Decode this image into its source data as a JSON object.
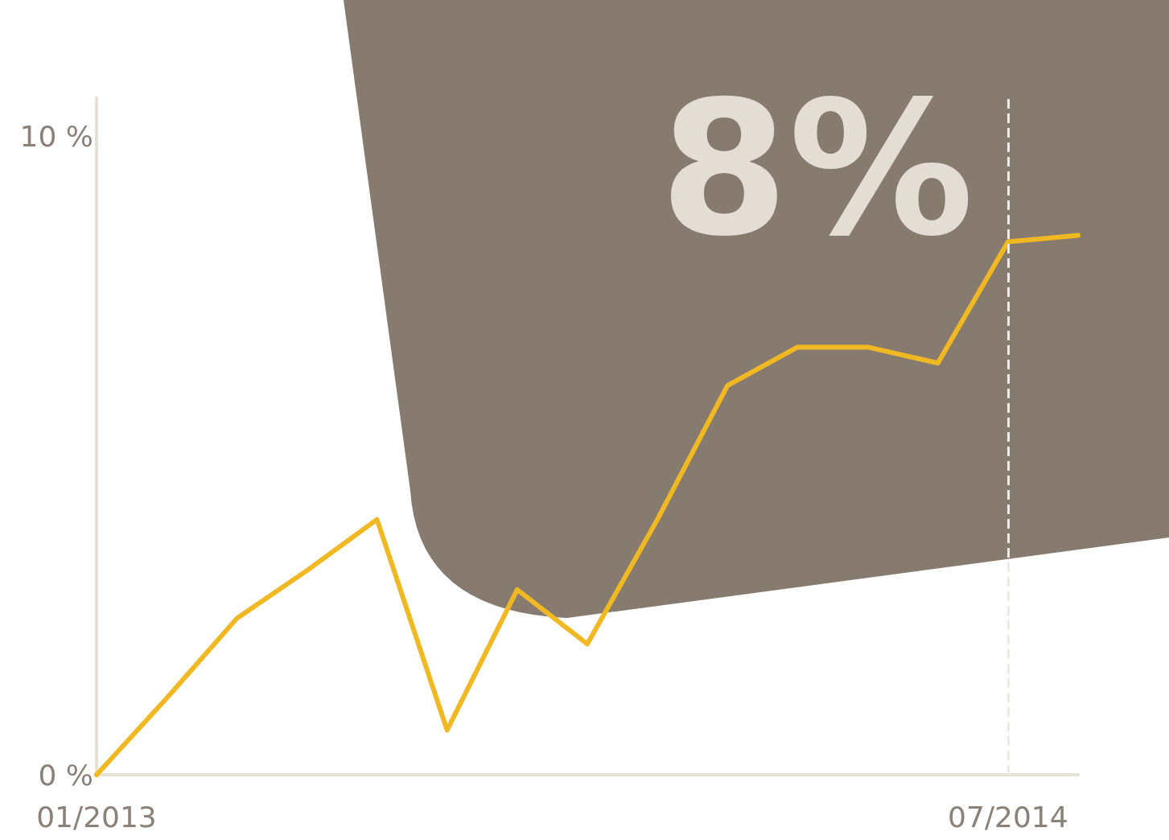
{
  "chart_data": {
    "type": "line",
    "categories": [
      "01/2013",
      null,
      null,
      null,
      null,
      null,
      null,
      null,
      null,
      null,
      null,
      null,
      null,
      "07/2014",
      null
    ],
    "series": [
      {
        "color": "#f0b822",
        "values": [
          0,
          1.2,
          2.45,
          3.2,
          4.0,
          0.7,
          2.9,
          2.05,
          4.0,
          6.1,
          6.7,
          6.7,
          6.45,
          8.35,
          8.45
        ]
      }
    ],
    "ylim": [
      0,
      10.6
    ],
    "yticks": [
      {
        "value": 0,
        "label": "0 %"
      },
      {
        "value": 10,
        "label": "10 %"
      }
    ],
    "ref_lines": [
      {
        "axis": "x",
        "value": "07/2014",
        "color": "#eeeae4",
        "line_style": "dashed"
      }
    ],
    "annotations": [
      "8%"
    ],
    "grid": false,
    "marker": "none",
    "line_style": "solid"
  }
}
